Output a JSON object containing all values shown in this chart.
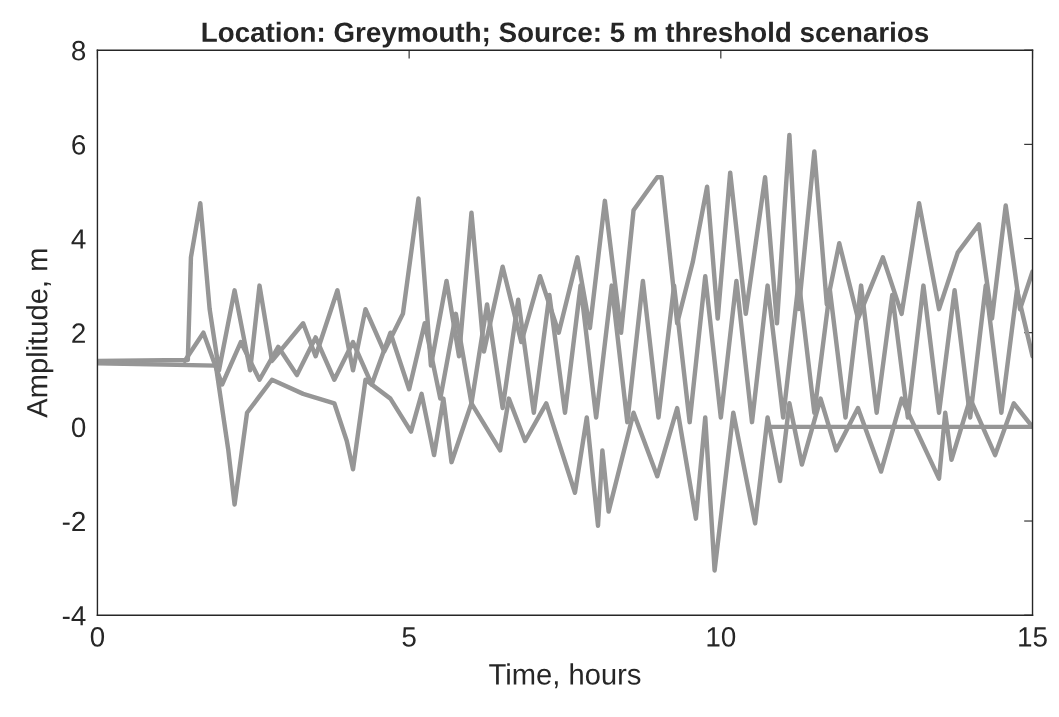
{
  "chart_data": {
    "type": "line",
    "title": "Location: Greymouth; Source: 5 m threshold scenarios",
    "xlabel": "Time, hours",
    "ylabel": "Amplitude, m",
    "xlim": [
      0,
      15
    ],
    "xticks": [
      0,
      5,
      10,
      15
    ],
    "ylim": [
      -4,
      8
    ],
    "yticks": [
      -4,
      -2,
      0,
      2,
      4,
      6,
      8
    ],
    "grid": false,
    "legend": false,
    "marker": "none",
    "line_style": "solid",
    "series": [
      {
        "color": "#969696",
        "x": [
          0,
          1.45,
          1.5,
          1.65,
          1.8,
          1.95,
          2.2,
          2.45,
          2.6,
          2.8,
          3.3,
          3.5,
          3.85,
          4.1,
          4.3,
          4.6,
          4.9,
          5.15,
          5.35,
          5.6,
          5.8,
          6.0,
          6.2,
          6.5,
          6.8,
          7.1,
          7.4,
          7.7,
          7.9,
          8.14,
          8.4,
          8.6,
          8.98,
          9.05,
          9.3,
          9.55,
          9.78,
          9.95,
          10.15,
          10.4,
          10.71,
          10.9,
          11.1,
          11.25,
          11.5,
          11.7,
          11.9,
          12.2,
          12.6,
          12.9,
          13.18,
          13.5,
          13.8,
          14.14,
          14.35,
          14.57,
          14.8,
          15
        ],
        "values": [
          1.4,
          1.42,
          3.6,
          4.75,
          2.5,
          1.2,
          2.9,
          1.2,
          3.0,
          1.4,
          2.2,
          1.5,
          2.9,
          1.2,
          2.5,
          1.6,
          2.4,
          4.85,
          1.3,
          3.1,
          1.5,
          4.55,
          1.6,
          3.4,
          1.8,
          3.2,
          2.0,
          3.6,
          2.1,
          4.8,
          2.0,
          4.6,
          5.3,
          5.3,
          2.2,
          3.5,
          5.1,
          2.3,
          5.4,
          2.4,
          5.3,
          2.2,
          6.2,
          2.5,
          5.85,
          2.6,
          3.9,
          2.3,
          3.6,
          2.4,
          4.75,
          2.5,
          3.7,
          4.3,
          2.3,
          4.7,
          2.5,
          3.3
        ]
      },
      {
        "color": "#969696",
        "x": [
          0,
          1.9,
          2.1,
          2.2,
          2.4,
          2.8,
          3.3,
          3.8,
          4.0,
          4.1,
          4.3,
          4.7,
          5.03,
          5.2,
          5.4,
          5.55,
          5.68,
          6.0,
          6.46,
          6.6,
          6.86,
          7.2,
          7.66,
          7.85,
          8.03,
          8.1,
          8.2,
          8.6,
          8.98,
          9.3,
          9.6,
          9.75,
          9.9,
          10.2,
          10.55,
          10.75,
          10.95,
          11.1,
          11.3,
          11.6,
          11.85,
          12.2,
          12.57,
          12.9,
          13.5,
          13.6,
          13.7,
          14.0,
          14.4,
          14.7,
          15
        ],
        "values": [
          1.35,
          1.3,
          -0.5,
          -1.65,
          0.3,
          1.0,
          0.7,
          0.5,
          -0.3,
          -0.9,
          1.0,
          0.6,
          -0.1,
          0.7,
          -0.6,
          0.6,
          -0.75,
          0.5,
          -0.5,
          0.6,
          -0.3,
          0.5,
          -1.4,
          0.2,
          -2.1,
          -0.5,
          -1.8,
          0.3,
          -1.05,
          0.4,
          -1.95,
          0.2,
          -3.05,
          0.3,
          -2.05,
          0.2,
          -1.15,
          0.5,
          -0.8,
          0.6,
          -0.5,
          0.4,
          -0.95,
          0.6,
          -1.1,
          0.3,
          -0.7,
          0.6,
          -0.6,
          0.5,
          0
        ]
      },
      {
        "color": "#969696",
        "x": [
          1.4,
          1.7,
          2.0,
          2.3,
          2.6,
          2.9,
          3.2,
          3.5,
          3.8,
          4.1,
          4.4,
          4.7,
          5.0,
          5.25,
          5.5,
          5.75,
          6.0,
          6.25,
          6.5,
          6.75,
          7.0,
          7.25,
          7.5,
          7.75,
          8.0,
          8.25,
          8.5,
          8.75,
          9.0,
          9.25,
          9.5,
          9.75,
          10.0,
          10.25,
          10.5,
          10.75,
          11.0,
          11.25,
          11.5,
          11.75,
          12.0,
          12.25,
          12.5,
          12.75,
          13.0,
          13.25,
          13.5,
          13.75,
          14.0,
          14.25,
          14.5,
          14.75,
          15
        ],
        "values": [
          1.4,
          2.0,
          0.9,
          1.8,
          1.0,
          1.7,
          1.1,
          1.9,
          1.0,
          1.8,
          0.9,
          2.0,
          0.8,
          2.2,
          0.6,
          2.4,
          0.5,
          2.6,
          0.4,
          2.7,
          0.3,
          2.8,
          0.3,
          3.0,
          0.2,
          3.0,
          0.1,
          3.1,
          0.2,
          3.0,
          0.1,
          3.2,
          0.2,
          3.1,
          0.1,
          3.0,
          0.2,
          3.1,
          0.3,
          2.9,
          0.2,
          3.0,
          0.3,
          2.8,
          0.2,
          3.0,
          0.3,
          2.9,
          0.2,
          3.0,
          0.3,
          2.9,
          1.5
        ]
      },
      {
        "color": "#969696",
        "x": [
          10.8,
          15
        ],
        "values": [
          0,
          0
        ]
      }
    ]
  }
}
